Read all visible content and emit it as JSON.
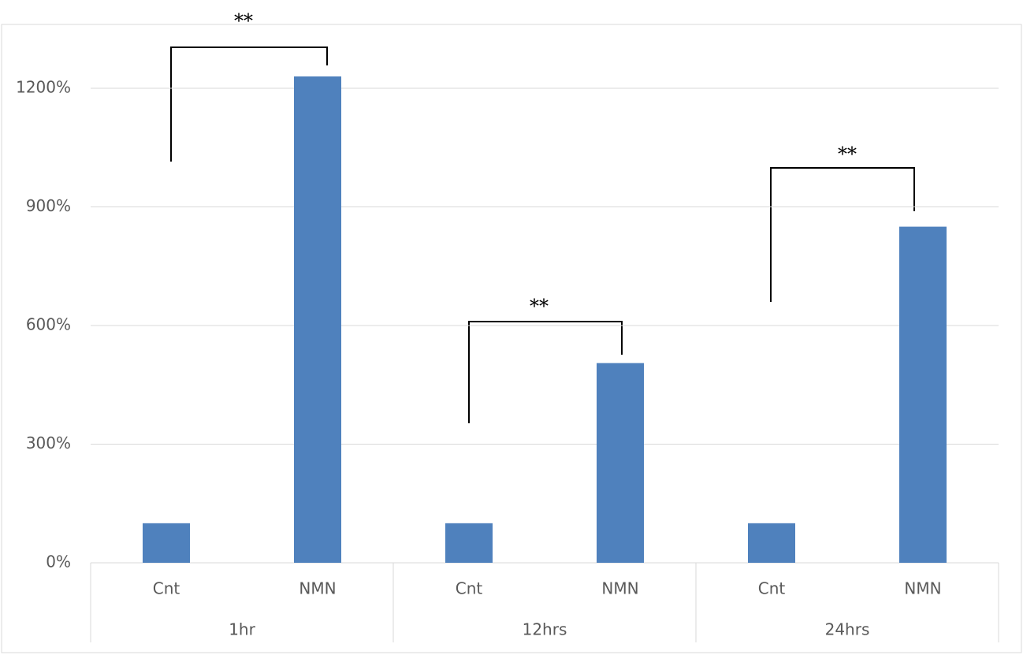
{
  "chart_data": {
    "type": "bar",
    "categories": [
      "Cnt",
      "NMN",
      "Cnt",
      "NMN",
      "Cnt",
      "NMN"
    ],
    "groups": [
      "1hr",
      "12hrs",
      "24hrs"
    ],
    "values": [
      100,
      1230,
      100,
      505,
      100,
      850
    ],
    "color": "#4f81bd",
    "ylim": [
      0,
      1360
    ],
    "yticks": [
      {
        "value": 0,
        "label": "0%"
      },
      {
        "value": 300,
        "label": "300%"
      },
      {
        "value": 600,
        "label": "600%"
      },
      {
        "value": 900,
        "label": "900%"
      },
      {
        "value": 1200,
        "label": "1200%"
      }
    ],
    "grid": true,
    "annotations": [
      "**",
      "**",
      "**"
    ]
  }
}
